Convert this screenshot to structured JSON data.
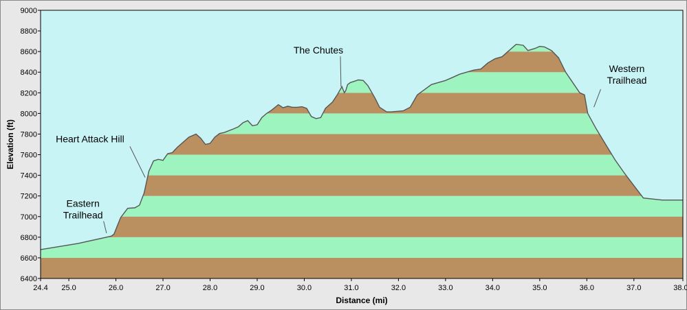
{
  "chart_data": {
    "type": "area",
    "xlabel": "Distance   (mi)",
    "ylabel": "Elevation (ft)",
    "xlim": [
      24.4,
      38.04
    ],
    "ylim": [
      6400,
      9000
    ],
    "x_ticks": [
      "24.4",
      "25.0",
      "26.0",
      "27.0",
      "28.0",
      "29.0",
      "30.0",
      "31.0",
      "32.0",
      "33.0",
      "34.0",
      "35.0",
      "36.0",
      "37.0",
      "38.04"
    ],
    "x_tick_values": [
      24.4,
      25.0,
      26.0,
      27.0,
      28.0,
      29.0,
      30.0,
      31.0,
      32.0,
      33.0,
      34.0,
      35.0,
      36.0,
      37.0,
      38.04
    ],
    "y_ticks": [
      "6400",
      "6600",
      "6800",
      "7000",
      "7200",
      "7400",
      "7600",
      "7800",
      "8000",
      "8200",
      "8400",
      "8600",
      "8800",
      "9000"
    ],
    "y_tick_values": [
      6400,
      6600,
      6800,
      7000,
      7200,
      7400,
      7600,
      7800,
      8000,
      8200,
      8400,
      8600,
      8800,
      9000
    ],
    "band_colors": [
      "#bb9060",
      "#9ef4bf"
    ],
    "colors": {
      "sky": "#c8f4f6",
      "outline": "#555555",
      "frame": "#e8e8e8"
    },
    "x": [
      24.4,
      25.2,
      25.9,
      25.96,
      26.1,
      26.25,
      26.4,
      26.5,
      26.6,
      26.7,
      26.8,
      26.9,
      27.0,
      27.1,
      27.2,
      27.3,
      27.45,
      27.55,
      27.7,
      27.8,
      27.9,
      28.0,
      28.1,
      28.2,
      28.3,
      28.5,
      28.6,
      28.7,
      28.8,
      28.9,
      29.0,
      29.1,
      29.2,
      29.3,
      29.45,
      29.55,
      29.65,
      29.75,
      29.85,
      29.95,
      30.05,
      30.15,
      30.25,
      30.35,
      30.45,
      30.6,
      30.7,
      30.8,
      30.85,
      30.88,
      30.92,
      30.98,
      31.05,
      31.15,
      31.25,
      31.35,
      31.5,
      31.6,
      31.75,
      31.85,
      31.95,
      32.1,
      32.25,
      32.4,
      32.55,
      32.7,
      32.85,
      33.0,
      33.15,
      33.3,
      33.45,
      33.6,
      33.75,
      33.9,
      34.05,
      34.2,
      34.35,
      34.5,
      34.65,
      34.75,
      34.9,
      35.0,
      35.1,
      35.25,
      35.4,
      35.55,
      35.7,
      35.85,
      35.95,
      36.02,
      36.2,
      36.4,
      36.6,
      36.8,
      37.0,
      37.2,
      37.4,
      37.6,
      37.8,
      38.04
    ],
    "y": [
      6680,
      6740,
      6810,
      6830,
      6990,
      7080,
      7085,
      7110,
      7230,
      7440,
      7540,
      7555,
      7545,
      7610,
      7620,
      7670,
      7730,
      7770,
      7800,
      7760,
      7700,
      7710,
      7770,
      7805,
      7815,
      7850,
      7870,
      7910,
      7930,
      7880,
      7890,
      7960,
      8000,
      8030,
      8085,
      8055,
      8070,
      8060,
      8060,
      8065,
      8050,
      7970,
      7950,
      7960,
      8050,
      8110,
      8180,
      8260,
      8200,
      8220,
      8280,
      8300,
      8310,
      8325,
      8320,
      8270,
      8150,
      8060,
      8015,
      8015,
      8020,
      8025,
      8060,
      8180,
      8230,
      8280,
      8300,
      8320,
      8350,
      8380,
      8400,
      8420,
      8430,
      8490,
      8530,
      8550,
      8610,
      8670,
      8660,
      8610,
      8630,
      8650,
      8645,
      8610,
      8540,
      8400,
      8300,
      8200,
      8180,
      8000,
      7850,
      7700,
      7550,
      7420,
      7300,
      7180,
      7170,
      7160,
      7160,
      7160
    ],
    "annotations": [
      {
        "lines": [
          "Eastern",
          "Trailhead"
        ],
        "x": 25.3,
        "y": 7095,
        "arrow_to": [
          25.8,
          6840
        ]
      },
      {
        "lines": [
          "Heart Attack Hill"
        ],
        "x": 25.45,
        "y": 7720,
        "arrow_to": [
          26.62,
          7380
        ]
      },
      {
        "lines": [
          "The Chutes"
        ],
        "x": 30.3,
        "y": 8580,
        "arrow_to": [
          30.78,
          8260
        ]
      },
      {
        "lines": [
          "Western",
          "Trailhead"
        ],
        "x": 36.85,
        "y": 8400,
        "arrow_to": [
          36.15,
          8060
        ]
      }
    ]
  }
}
